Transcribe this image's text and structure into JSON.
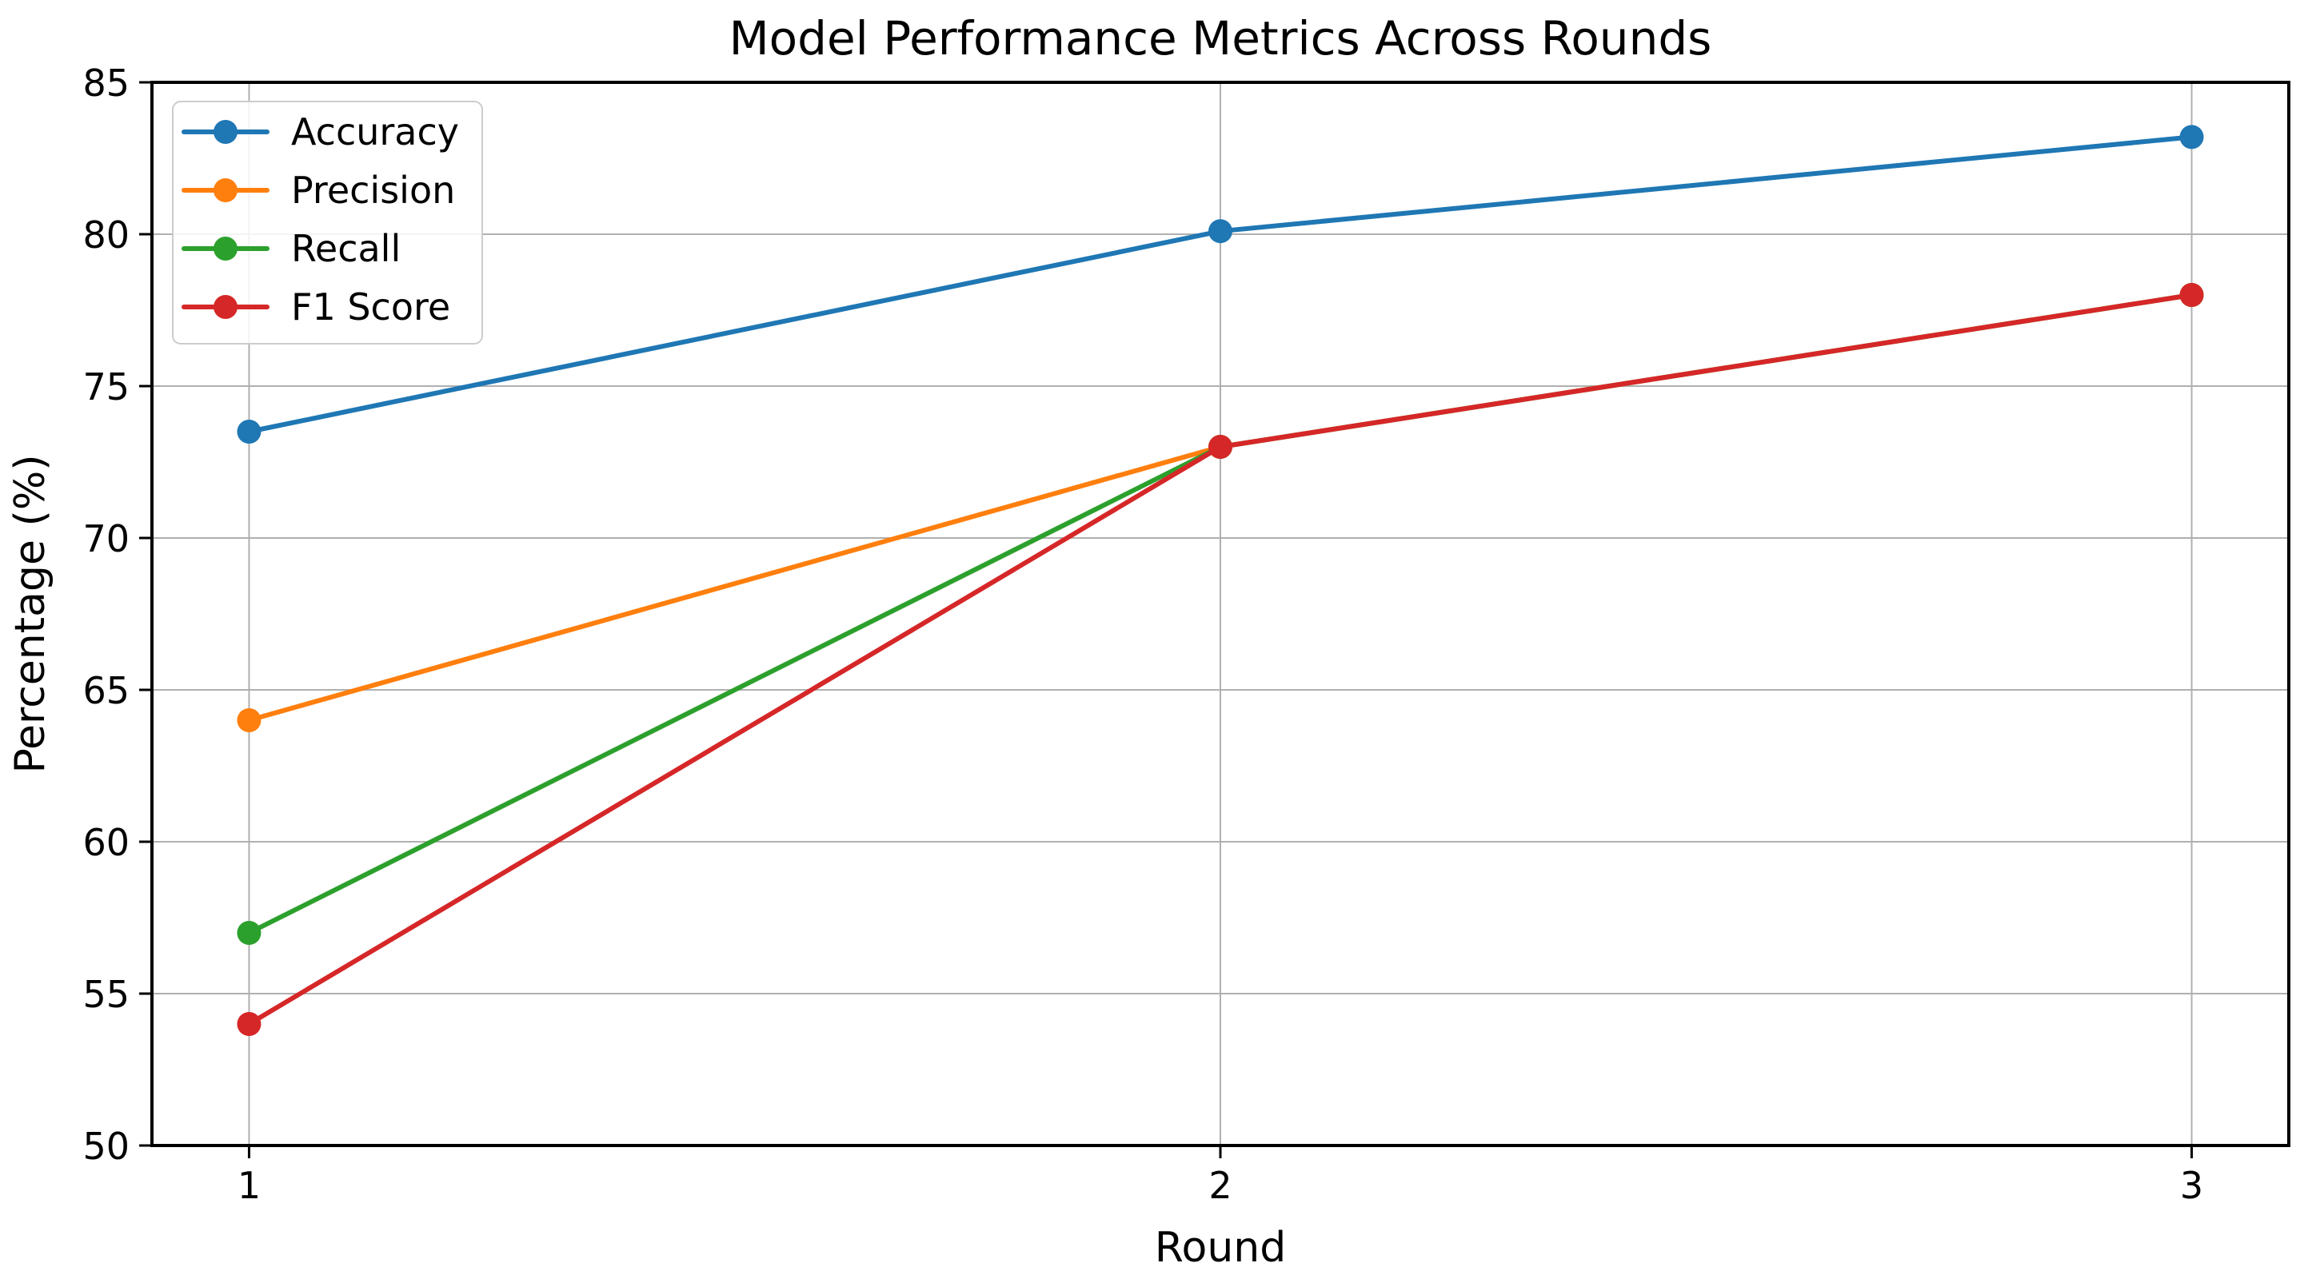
{
  "chart_data": {
    "type": "line",
    "title": "Model Performance Metrics Across Rounds",
    "xlabel": "Round",
    "ylabel": "Percentage (%)",
    "x": [
      1,
      2,
      3
    ],
    "xticks": [
      1,
      2,
      3
    ],
    "xtick_labels": [
      "1",
      "2",
      "3"
    ],
    "yticks": [
      50,
      55,
      60,
      65,
      70,
      75,
      80,
      85
    ],
    "ytick_labels": [
      "50",
      "55",
      "60",
      "65",
      "70",
      "75",
      "80",
      "85"
    ],
    "xlim": [
      0.9,
      3.1
    ],
    "ylim": [
      50,
      85
    ],
    "grid": true,
    "legend_position": "upper left",
    "marker": "circle",
    "series": [
      {
        "name": "Accuracy",
        "values": [
          73.5,
          80.1,
          83.2
        ],
        "color": "#1f77b4"
      },
      {
        "name": "Precision",
        "values": [
          64.0,
          73.0,
          78.0
        ],
        "color": "#ff7f0e"
      },
      {
        "name": "Recall",
        "values": [
          57.0,
          73.0,
          78.0
        ],
        "color": "#2ca02c"
      },
      {
        "name": "F1 Score",
        "values": [
          54.0,
          73.0,
          78.0
        ],
        "color": "#d62728"
      }
    ],
    "colors": {
      "background": "#ffffff",
      "grid": "#b0b0b0",
      "spine": "#000000",
      "legend_border": "#cccccc",
      "text": "#000000"
    }
  }
}
